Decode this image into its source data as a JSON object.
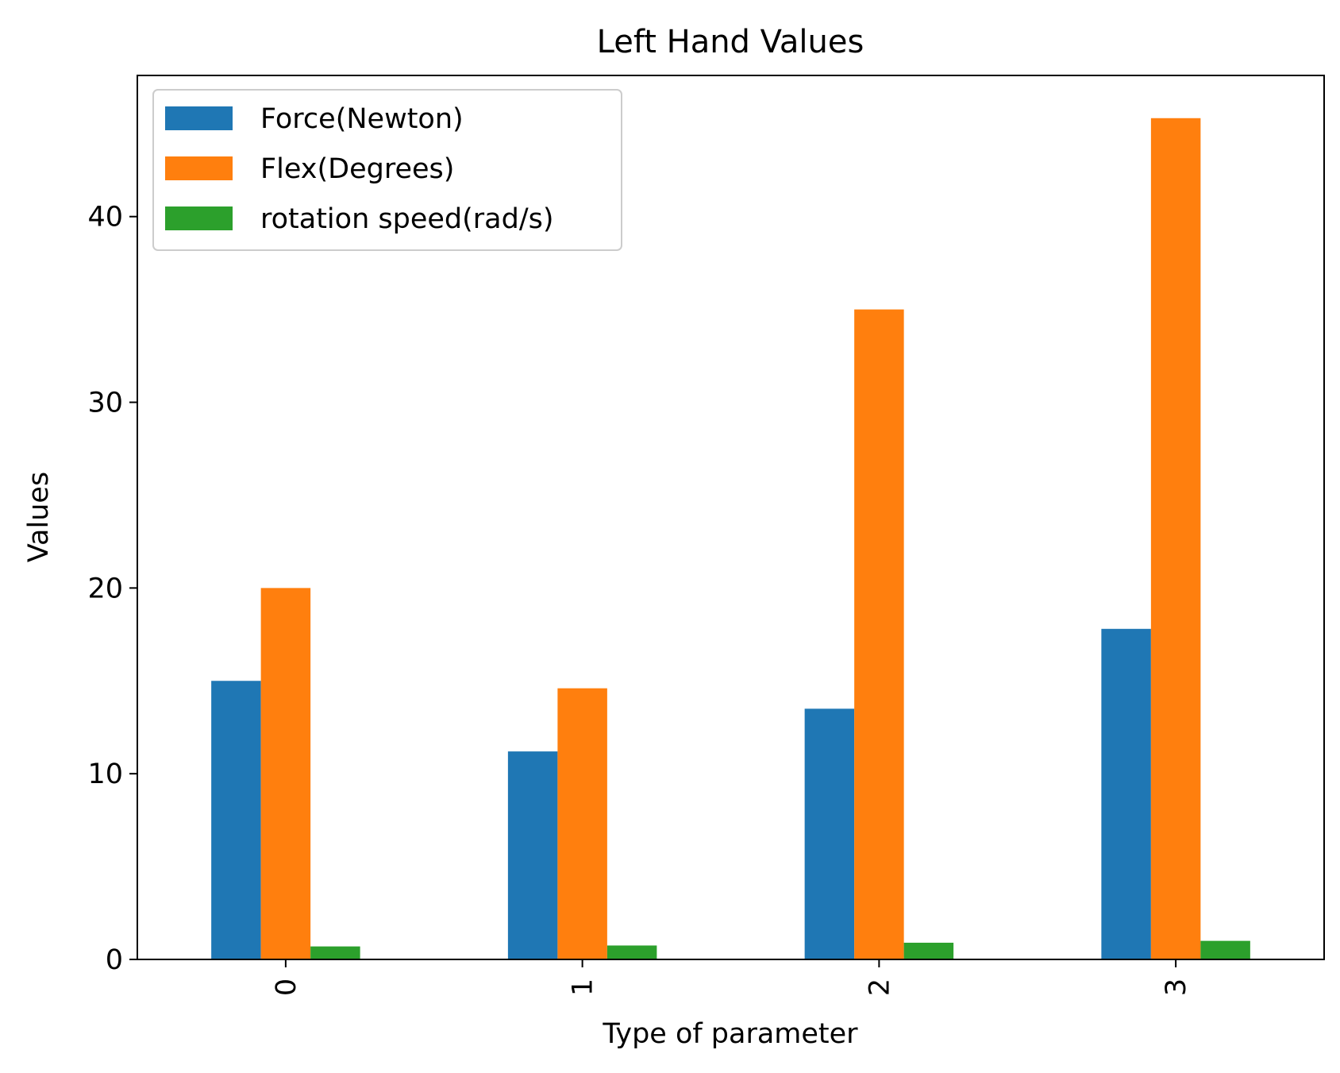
{
  "chart_data": {
    "type": "bar",
    "title": "Left Hand Values",
    "xlabel": "Type of parameter",
    "ylabel": "Values",
    "categories": [
      "0",
      "1",
      "2",
      "3"
    ],
    "series": [
      {
        "name": "Force(Newton)",
        "values": [
          15.0,
          11.2,
          13.5,
          17.8
        ],
        "color": "#1f77b4"
      },
      {
        "name": "Flex(Degrees)",
        "values": [
          20.0,
          14.6,
          35.0,
          45.3
        ],
        "color": "#ff7f0e"
      },
      {
        "name": "rotation speed(rad/s)",
        "values": [
          0.7,
          0.75,
          0.9,
          1.0
        ],
        "color": "#2ca02c"
      }
    ],
    "ylim": [
      0,
      47.6
    ],
    "yticks": [
      0,
      10,
      20,
      30,
      40
    ],
    "grid": false,
    "legend_position": "top-left"
  }
}
